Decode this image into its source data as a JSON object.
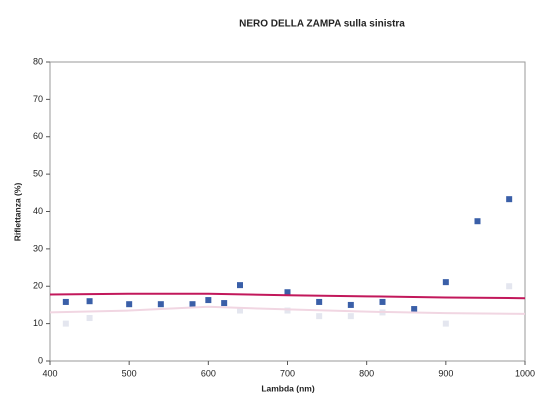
{
  "chart_data": {
    "type": "scatter",
    "title": "NERO DELLA ZAMPA sulla sinistra",
    "x_label": "Lambda (nm)",
    "y_label": "Riflettanza (%)",
    "xlim": [
      400,
      1000
    ],
    "xticks": [
      400,
      500,
      600,
      700,
      800,
      900,
      1000
    ],
    "ylim": [
      0,
      80
    ],
    "yticks": [
      0,
      10,
      20,
      30,
      40,
      50,
      60,
      70,
      80
    ],
    "series": [
      {
        "kind": "scatter",
        "color": "#3a5fa8",
        "x": [
          420,
          450,
          500,
          540,
          580,
          600,
          620,
          640,
          700,
          740,
          780,
          820,
          860,
          900,
          940,
          980
        ],
        "values": [
          15.8,
          16.0,
          15.2,
          15.2,
          15.2,
          16.3,
          15.5,
          20.3,
          18.4,
          15.8,
          15.0,
          15.8,
          13.9,
          21.1,
          37.4,
          43.3
        ]
      },
      {
        "kind": "scatter",
        "color": "#e4e6ef",
        "x": [
          420,
          450,
          640,
          700,
          740,
          780,
          820,
          900,
          980
        ],
        "values": [
          10,
          11.5,
          13.5,
          13.5,
          12,
          12,
          13,
          10,
          20
        ]
      },
      {
        "kind": "line",
        "color": "#c2185b",
        "x": [
          400,
          500,
          600,
          700,
          800,
          900,
          1000
        ],
        "values": [
          17.8,
          18.0,
          18.0,
          17.6,
          17.3,
          17.0,
          16.8
        ]
      },
      {
        "kind": "line",
        "color": "#f1d6e2",
        "x": [
          400,
          500,
          600,
          700,
          800,
          900,
          1000
        ],
        "values": [
          13.0,
          13.5,
          14.5,
          13.8,
          13.2,
          12.8,
          12.6
        ]
      }
    ]
  }
}
